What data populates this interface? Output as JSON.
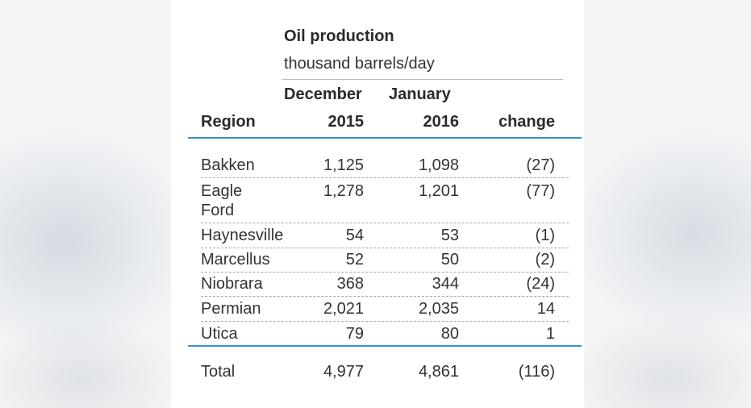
{
  "table": {
    "title": "Oil production",
    "subtitle": "thousand barrels/day",
    "headers": {
      "region": "Region",
      "dec_top": "December",
      "dec_bottom": "2015",
      "jan_top": "January",
      "jan_bottom": "2016",
      "change": "change"
    },
    "rows": [
      {
        "region": "Bakken",
        "dec": "1,125",
        "jan": "1,098",
        "change": "(27)"
      },
      {
        "region": "Eagle",
        "region2": "Ford",
        "dec": "1,278",
        "jan": "1,201",
        "change": "(77)"
      },
      {
        "region": "Haynesville",
        "dec": "54",
        "jan": "53",
        "change": "(1)"
      },
      {
        "region": "Marcellus",
        "dec": "52",
        "jan": "50",
        "change": "(2)"
      },
      {
        "region": "Niobrara",
        "dec": "368",
        "jan": "344",
        "change": "(24)"
      },
      {
        "region": "Permian",
        "dec": "2,021",
        "jan": "2,035",
        "change": "14"
      },
      {
        "region": "Utica",
        "dec": "79",
        "jan": "80",
        "change": "1"
      }
    ],
    "total": {
      "region": "Total",
      "dec": "4,977",
      "jan": "4,861",
      "change": "(116)"
    }
  },
  "colors": {
    "accent_rule": "#3a93c0",
    "text": "#333333",
    "background": "#ffffff"
  }
}
